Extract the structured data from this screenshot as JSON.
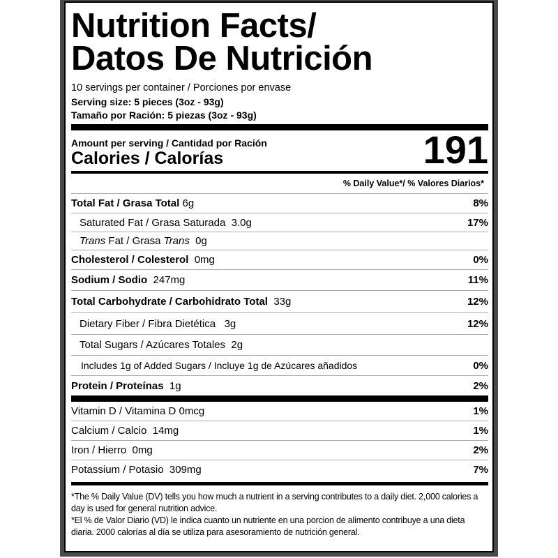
{
  "title": {
    "line1": "Nutrition Facts/",
    "line2": "Datos De Nutrición"
  },
  "servings": "10 servings per container / Porciones por envase",
  "serving_size": "Serving size: 5 pieces (3oz - 93g)",
  "tamano": "Tamaño por Ración: 5 piezas (3oz - 93g)",
  "amount_label": "Amount per serving / Cantidad por Ración",
  "calories_label": "Calories / Calorías",
  "calories_value": "191",
  "dv_header": "% Daily Value*/ % Valores Diarios*",
  "nutrients": [
    {
      "name": "Total Fat / Grasa Total",
      "amount": "6g",
      "pct": "8%"
    },
    {
      "name": "Saturated Fat / Grasa Saturada",
      "amount": "3.0g",
      "pct": "17%"
    },
    {
      "name_a": "Trans",
      "name_b": " Fat / Grasa ",
      "name_c": "Trans",
      "amount": "0g",
      "pct": ""
    },
    {
      "name": "Cholesterol / Colesterol",
      "amount": "0mg",
      "pct": "0%"
    },
    {
      "name": "Sodium / Sodio",
      "amount": "247mg",
      "pct": "11%"
    },
    {
      "name": "Total Carbohydrate / Carbohidrato Total",
      "amount": "33g",
      "pct": "12%"
    },
    {
      "name": "Dietary Fiber / Fibra Dietética",
      "amount": "3g",
      "pct": "12%"
    },
    {
      "name": "Total Sugars / Azúcares Totales",
      "amount": "2g",
      "pct": ""
    },
    {
      "name": "Includes 1g of Added Sugars / Incluye 1g de Azúcares añadidos",
      "pct": "0%"
    },
    {
      "name": "Protein / Proteínas",
      "amount": "1g",
      "pct": "2%"
    }
  ],
  "vitamins": [
    {
      "name": "Vitamin D / Vitamina D",
      "amount": "0mcg",
      "pct": "1%"
    },
    {
      "name": "Calcium / Calcio",
      "amount": "14mg",
      "pct": "1%"
    },
    {
      "name": "Iron / Hierro",
      "amount": "0mg",
      "pct": "2%"
    },
    {
      "name": "Potassium / Potasio",
      "amount": "309mg",
      "pct": "7%"
    }
  ],
  "footnote_en": "*The % Daily Value (DV) tells you how much a nutrient in a serving contributes to a daily diet. 2,000 calories a day is used for general nutrition advice.",
  "footnote_es": "*El % de Valor Diario (VD) le indica cuanto un nutriente en una porcion de alimento contribuye a una dieta diaria. 2000 calorías al día se utiliza para asesoramiento de nutrición general."
}
